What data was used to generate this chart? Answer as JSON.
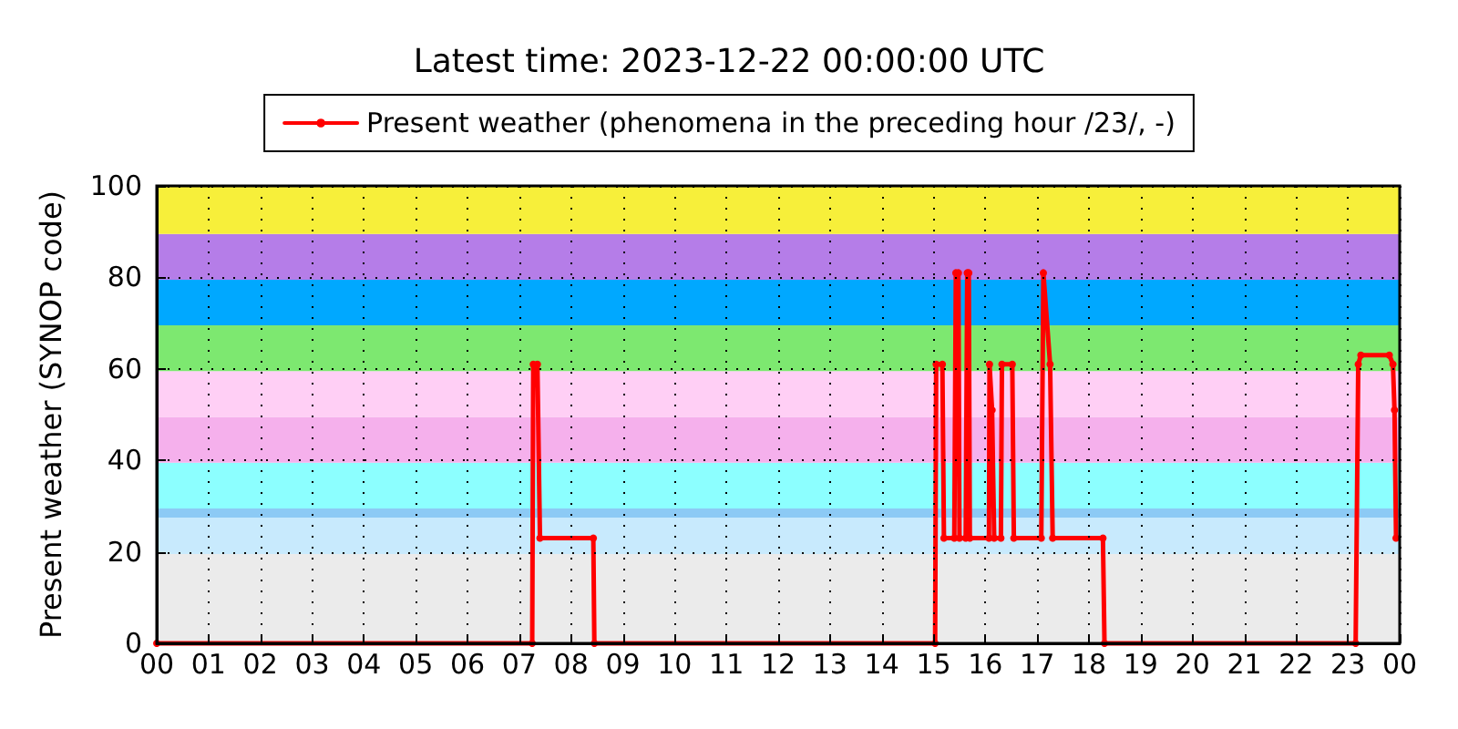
{
  "chart_data": {
    "type": "line",
    "title": "Latest time: 2023-12-22 00:00:00 UTC",
    "ylabel": "Present weather (SYNOP code)",
    "x": [
      0,
      7.25,
      7.27,
      7.35,
      7.4,
      8.43,
      8.45,
      15.03,
      15.05,
      15.17,
      15.2,
      15.4,
      15.43,
      15.48,
      15.5,
      15.62,
      15.65,
      15.68,
      15.7,
      16.07,
      16.08,
      16.13,
      16.17,
      16.3,
      16.32,
      16.52,
      16.55,
      17.08,
      17.12,
      17.25,
      17.3,
      18.27,
      18.3,
      23.15,
      23.2,
      23.25,
      23.8,
      23.87,
      23.9,
      23.93
    ],
    "series": [
      {
        "name": "Present weather (phenomena in the preceding hour /23/, -)",
        "color": "#ff0000",
        "values": [
          0,
          0,
          61,
          61,
          23,
          23,
          0,
          0,
          61,
          61,
          23,
          23,
          81,
          81,
          23,
          23,
          81,
          81,
          23,
          23,
          61,
          51,
          23,
          23,
          61,
          61,
          23,
          23,
          81,
          61,
          23,
          23,
          0,
          0,
          61,
          63,
          63,
          61,
          51,
          23
        ]
      }
    ],
    "xlim": [
      0,
      24
    ],
    "xticks": [
      {
        "value": 0,
        "label": "00"
      },
      {
        "value": 1,
        "label": "01"
      },
      {
        "value": 2,
        "label": "02"
      },
      {
        "value": 3,
        "label": "03"
      },
      {
        "value": 4,
        "label": "04"
      },
      {
        "value": 5,
        "label": "05"
      },
      {
        "value": 6,
        "label": "06"
      },
      {
        "value": 7,
        "label": "07"
      },
      {
        "value": 8,
        "label": "08"
      },
      {
        "value": 9,
        "label": "09"
      },
      {
        "value": 10,
        "label": "10"
      },
      {
        "value": 11,
        "label": "11"
      },
      {
        "value": 12,
        "label": "12"
      },
      {
        "value": 13,
        "label": "13"
      },
      {
        "value": 14,
        "label": "14"
      },
      {
        "value": 15,
        "label": "15"
      },
      {
        "value": 16,
        "label": "16"
      },
      {
        "value": 17,
        "label": "17"
      },
      {
        "value": 18,
        "label": "18"
      },
      {
        "value": 19,
        "label": "19"
      },
      {
        "value": 20,
        "label": "20"
      },
      {
        "value": 21,
        "label": "21"
      },
      {
        "value": 22,
        "label": "22"
      },
      {
        "value": 23,
        "label": "23"
      },
      {
        "value": 24,
        "label": "00"
      }
    ],
    "ylim": [
      0,
      100
    ],
    "yticks": [
      0,
      20,
      40,
      60,
      80,
      100
    ],
    "bands": [
      {
        "axis": "y",
        "from": 0,
        "to": 19.5,
        "color": "#ebebeb"
      },
      {
        "axis": "y",
        "from": 19.5,
        "to": 27.5,
        "color": "#c8eafd"
      },
      {
        "axis": "y",
        "from": 27.5,
        "to": 29.5,
        "color": "#8ccaf5"
      },
      {
        "axis": "y",
        "from": 29.5,
        "to": 39.5,
        "color": "#8cffff"
      },
      {
        "axis": "y",
        "from": 39.5,
        "to": 49.5,
        "color": "#f5b0ec"
      },
      {
        "axis": "y",
        "from": 49.5,
        "to": 59.5,
        "color": "#ffcff5"
      },
      {
        "axis": "y",
        "from": 59.5,
        "to": 69.5,
        "color": "#7de870"
      },
      {
        "axis": "y",
        "from": 69.5,
        "to": 79.5,
        "color": "#00a8ff"
      },
      {
        "axis": "y",
        "from": 79.5,
        "to": 89.5,
        "color": "#b57de8"
      },
      {
        "axis": "y",
        "from": 89.5,
        "to": 100,
        "color": "#f7ef3a"
      }
    ],
    "grid": true,
    "legend": "top",
    "marker": "circle",
    "line_style": "solid"
  }
}
